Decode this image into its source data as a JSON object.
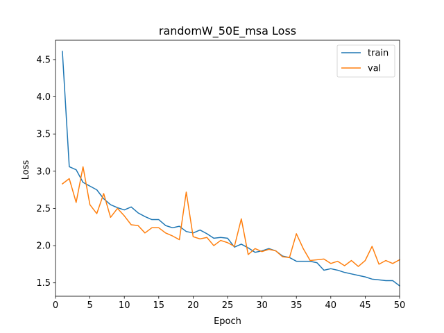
{
  "chart_data": {
    "type": "line",
    "title": "randomW_50E_msa Loss",
    "xlabel": "Epoch",
    "ylabel": "Loss",
    "xlim": [
      0,
      50
    ],
    "ylim": [
      1.32,
      4.76
    ],
    "xticks": [
      0,
      5,
      10,
      15,
      20,
      25,
      30,
      35,
      40,
      45,
      50
    ],
    "yticks": [
      1.5,
      2.0,
      2.5,
      3.0,
      3.5,
      4.0,
      4.5
    ],
    "grid": false,
    "legend_position": "top-right",
    "x": [
      1,
      2,
      3,
      4,
      5,
      6,
      7,
      8,
      9,
      10,
      11,
      12,
      13,
      14,
      15,
      16,
      17,
      18,
      19,
      20,
      21,
      22,
      23,
      24,
      25,
      26,
      27,
      28,
      29,
      30,
      31,
      32,
      33,
      34,
      35,
      36,
      37,
      38,
      39,
      40,
      41,
      42,
      43,
      44,
      45,
      46,
      47,
      48,
      49,
      50
    ],
    "series": [
      {
        "name": "train",
        "color": "#1f77b4",
        "values": [
          4.61,
          3.06,
          3.02,
          2.85,
          2.8,
          2.75,
          2.63,
          2.55,
          2.51,
          2.48,
          2.52,
          2.44,
          2.39,
          2.35,
          2.35,
          2.27,
          2.24,
          2.26,
          2.19,
          2.17,
          2.21,
          2.16,
          2.1,
          2.11,
          2.1,
          1.98,
          2.02,
          1.97,
          1.91,
          1.93,
          1.96,
          1.93,
          1.86,
          1.84,
          1.79,
          1.79,
          1.79,
          1.77,
          1.67,
          1.69,
          1.67,
          1.64,
          1.62,
          1.6,
          1.58,
          1.55,
          1.54,
          1.53,
          1.53,
          1.46
        ]
      },
      {
        "name": "val",
        "color": "#ff7f0e",
        "values": [
          2.83,
          2.9,
          2.58,
          3.06,
          2.55,
          2.43,
          2.7,
          2.38,
          2.5,
          2.4,
          2.28,
          2.27,
          2.17,
          2.24,
          2.24,
          2.17,
          2.13,
          2.08,
          2.72,
          2.12,
          2.09,
          2.11,
          2.0,
          2.07,
          2.04,
          1.99,
          2.36,
          1.88,
          1.96,
          1.92,
          1.95,
          1.93,
          1.85,
          1.84,
          2.16,
          1.96,
          1.8,
          1.81,
          1.82,
          1.76,
          1.79,
          1.73,
          1.8,
          1.72,
          1.8,
          1.99,
          1.75,
          1.8,
          1.76,
          1.81
        ]
      }
    ]
  }
}
